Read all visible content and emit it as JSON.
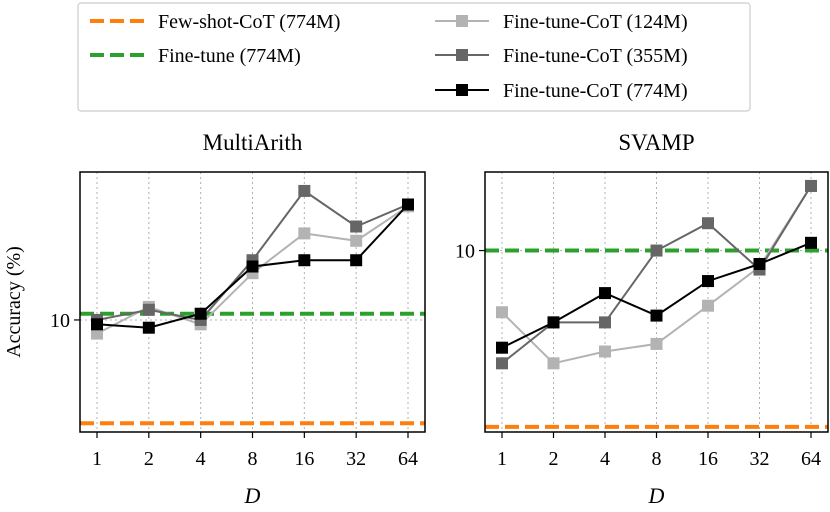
{
  "legend": {
    "entries": [
      {
        "label": "Few-shot-CoT (774M)",
        "color": "#ff7f0e",
        "style": "dashed"
      },
      {
        "label": "Fine-tune (774M)",
        "color": "#2ca02c",
        "style": "dashed"
      },
      {
        "label": "Fine-tune-CoT (124M)",
        "color": "#b3b3b3",
        "style": "solid-square"
      },
      {
        "label": "Fine-tune-CoT (355M)",
        "color": "#666666",
        "style": "solid-square"
      },
      {
        "label": "Fine-tune-CoT (774M)",
        "color": "#000000",
        "style": "solid-square"
      }
    ]
  },
  "chart_data": [
    {
      "type": "line",
      "title": "MultiArith",
      "xlabel": "D",
      "ylabel": "Accuracy (%)",
      "y_scale": "log",
      "categories": [
        "1",
        "2",
        "4",
        "8",
        "16",
        "32",
        "64"
      ],
      "ylim": [
        3.5,
        40
      ],
      "yticks": [
        10
      ],
      "hlines": [
        {
          "name": "Few-shot-CoT (774M)",
          "value": 3.8,
          "color": "#ff7f0e"
        },
        {
          "name": "Fine-tune (774M)",
          "value": 10.6,
          "color": "#2ca02c"
        }
      ],
      "series": [
        {
          "name": "Fine-tune-CoT (124M)",
          "color": "#b3b3b3",
          "values": [
            8.8,
            11.3,
            9.6,
            15.5,
            22.5,
            21.0,
            29.0
          ]
        },
        {
          "name": "Fine-tune-CoT (355M)",
          "color": "#666666",
          "values": [
            10.0,
            11.0,
            10.0,
            17.5,
            33.5,
            24.0,
            29.5
          ]
        },
        {
          "name": "Fine-tune-CoT (774M)",
          "color": "#000000",
          "values": [
            9.6,
            9.3,
            10.6,
            16.5,
            17.5,
            17.5,
            29.5
          ]
        }
      ]
    },
    {
      "type": "line",
      "title": "SVAMP",
      "xlabel": "D",
      "ylabel": "",
      "y_scale": "log",
      "categories": [
        "1",
        "2",
        "4",
        "8",
        "16",
        "32",
        "64"
      ],
      "ylim": [
        5.0,
        13.5
      ],
      "yticks": [
        10
      ],
      "hlines": [
        {
          "name": "Few-shot-CoT (774M)",
          "value": 5.1,
          "color": "#ff7f0e"
        },
        {
          "name": "Fine-tune (774M)",
          "value": 10.0,
          "color": "#2ca02c"
        }
      ],
      "series": [
        {
          "name": "Fine-tune-CoT (124M)",
          "color": "#b3b3b3",
          "values": [
            7.9,
            6.5,
            6.8,
            7.0,
            8.1,
            9.4,
            12.8
          ]
        },
        {
          "name": "Fine-tune-CoT (355M)",
          "color": "#666666",
          "values": [
            6.5,
            7.6,
            7.6,
            10.0,
            11.1,
            9.3,
            12.8
          ]
        },
        {
          "name": "Fine-tune-CoT (774M)",
          "color": "#000000",
          "values": [
            6.9,
            7.6,
            8.5,
            7.8,
            8.9,
            9.5,
            10.3
          ]
        }
      ]
    }
  ]
}
